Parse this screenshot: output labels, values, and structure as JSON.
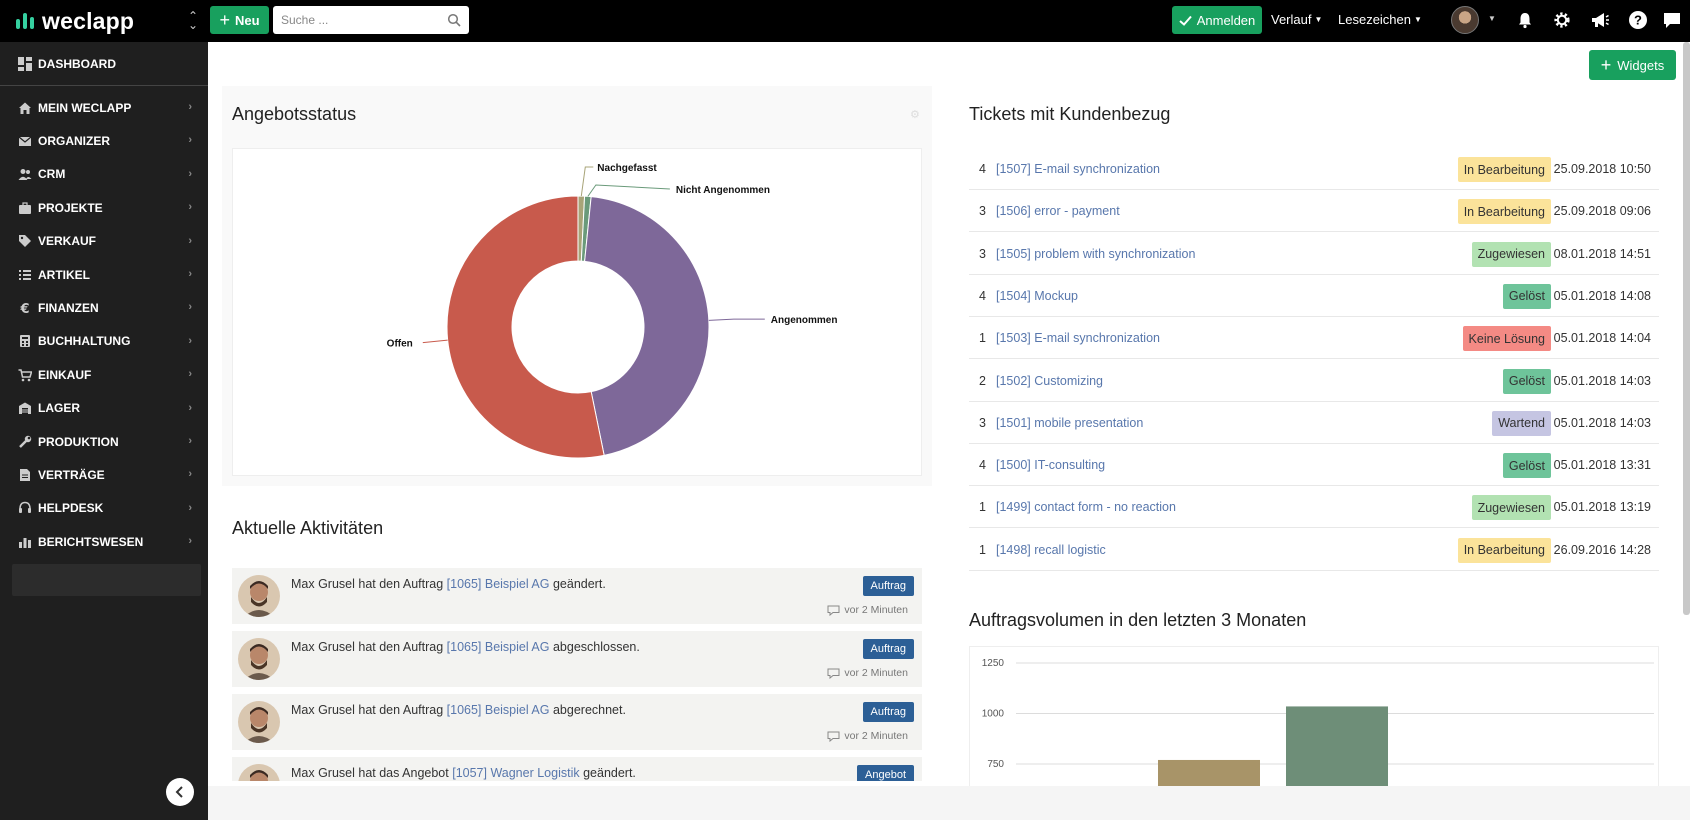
{
  "app": {
    "brand": "weclapp",
    "new_label": "Neu",
    "search_placeholder": "Suche ...",
    "login_label": "Anmelden",
    "history_label": "Verlauf",
    "bookmarks_label": "Lesezeichen",
    "widgets_label": "Widgets"
  },
  "sidebar": {
    "dashboard_label": "DASHBOARD",
    "items": [
      {
        "label": "MEIN WECLAPP",
        "icon": "home-icon"
      },
      {
        "label": "ORGANIZER",
        "icon": "envelope-icon"
      },
      {
        "label": "CRM",
        "icon": "users-icon"
      },
      {
        "label": "PROJEKTE",
        "icon": "briefcase-icon"
      },
      {
        "label": "VERKAUF",
        "icon": "tag-icon"
      },
      {
        "label": "ARTIKEL",
        "icon": "list-icon"
      },
      {
        "label": "FINANZEN",
        "icon": "euro-icon"
      },
      {
        "label": "BUCHHALTUNG",
        "icon": "calculator-icon"
      },
      {
        "label": "EINKAUF",
        "icon": "cart-icon"
      },
      {
        "label": "LAGER",
        "icon": "warehouse-icon"
      },
      {
        "label": "PRODUKTION",
        "icon": "wrench-icon"
      },
      {
        "label": "VERTRÄGE",
        "icon": "document-icon"
      },
      {
        "label": "HELPDESK",
        "icon": "headset-icon"
      },
      {
        "label": "BERICHTSWESEN",
        "icon": "bar-chart-icon"
      }
    ]
  },
  "offer_status": {
    "title": "Angebotsstatus",
    "chart_data": {
      "type": "pie",
      "style": "donut",
      "slices": [
        {
          "label": "Nachgefasst",
          "value": 0.8,
          "color": "#a8a478"
        },
        {
          "label": "Nicht Angenommen",
          "value": 0.8,
          "color": "#6a9a7a"
        },
        {
          "label": "Angenommen",
          "value": 45.2,
          "color": "#7e6899"
        },
        {
          "label": "Offen",
          "value": 53.2,
          "color": "#c85a4c"
        }
      ]
    }
  },
  "activities": {
    "title": "Aktuelle Aktivitäten",
    "items": [
      {
        "prefix": "Max Grusel hat den Auftrag ",
        "link": "[1065] Beispiel AG",
        "suffix": " geändert.",
        "badge": "Auftrag",
        "time": "vor 2 Minuten"
      },
      {
        "prefix": "Max Grusel hat den Auftrag ",
        "link": "[1065] Beispiel AG",
        "suffix": " abgeschlossen.",
        "badge": "Auftrag",
        "time": "vor 2 Minuten"
      },
      {
        "prefix": "Max Grusel hat den Auftrag ",
        "link": "[1065] Beispiel AG",
        "suffix": " abgerechnet.",
        "badge": "Auftrag",
        "time": "vor 2 Minuten"
      },
      {
        "prefix": "Max Grusel hat das Angebot ",
        "link": "[1057] Wagner Logistik",
        "suffix": " geändert.",
        "badge": "Angebot",
        "time": ""
      }
    ]
  },
  "tickets": {
    "title": "Tickets mit Kundenbezug",
    "rows": [
      {
        "prio": "4",
        "label": "[1507] E-mail synchronization",
        "status": "In Bearbeitung",
        "status_color": "#fbe39a",
        "date": "25.09.2018 10:50"
      },
      {
        "prio": "3",
        "label": "[1506] error - payment",
        "status": "In Bearbeitung",
        "status_color": "#fbe39a",
        "date": "25.09.2018 09:06"
      },
      {
        "prio": "3",
        "label": "[1505] problem with synchronization",
        "status": "Zugewiesen",
        "status_color": "#b2e2b2",
        "date": "08.01.2018 14:51"
      },
      {
        "prio": "4",
        "label": "[1504] Mockup",
        "status": "Gelöst",
        "status_color": "#6ec49a",
        "date": "05.01.2018 14:08"
      },
      {
        "prio": "1",
        "label": "[1503] E-mail synchronization",
        "status": "Keine Lösung",
        "status_color": "#f48a84",
        "date": "05.01.2018 14:04"
      },
      {
        "prio": "2",
        "label": "[1502] Customizing",
        "status": "Gelöst",
        "status_color": "#6ec49a",
        "date": "05.01.2018 14:03"
      },
      {
        "prio": "3",
        "label": "[1501] mobile presentation",
        "status": "Wartend",
        "status_color": "#c5c5e2",
        "date": "05.01.2018 14:03"
      },
      {
        "prio": "4",
        "label": "[1500] IT-consulting",
        "status": "Gelöst",
        "status_color": "#6ec49a",
        "date": "05.01.2018 13:31"
      },
      {
        "prio": "1",
        "label": "[1499] contact form - no reaction",
        "status": "Zugewiesen",
        "status_color": "#b2e2b2",
        "date": "05.01.2018 13:19"
      },
      {
        "prio": "1",
        "label": "[1498] recall logistic",
        "status": "In Bearbeitung",
        "status_color": "#fbe39a",
        "date": "26.09.2016 14:28"
      }
    ]
  },
  "order_volume": {
    "title": "Auftragsvolumen in den letzten 3 Monaten",
    "chart_data": {
      "type": "bar",
      "y_ticks": [
        1250,
        1000,
        750
      ],
      "series": [
        {
          "value": 770,
          "color": "#a89468"
        },
        {
          "value": 1035,
          "color": "#6e8e78"
        }
      ]
    }
  }
}
